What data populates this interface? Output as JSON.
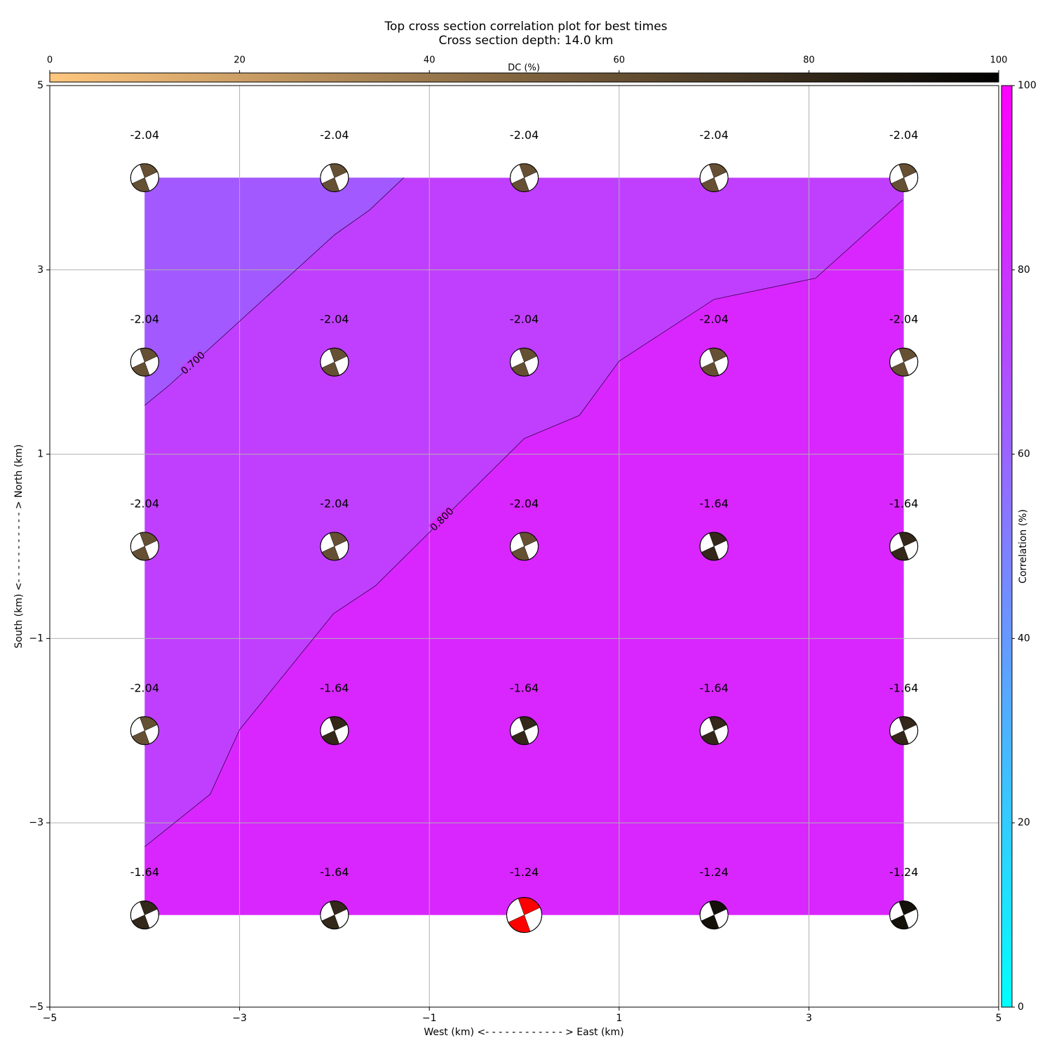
{
  "chart_data": {
    "type": "contour",
    "title": "Top cross section correlation plot for best times",
    "subtitle": "Cross section depth: 14.0 km",
    "xlabel": "West (km) <- - - - - - - - - - - - > East (km)",
    "ylabel": "South (km) <- - - - - - - - - - - > North (km)",
    "xlim": [
      -5,
      5
    ],
    "ylim": [
      -5,
      5
    ],
    "xticks": [
      {
        "value": -5,
        "label": "−5"
      },
      {
        "value": -3,
        "label": "−3"
      },
      {
        "value": -1,
        "label": "−1"
      },
      1,
      3,
      5
    ],
    "yticks": [
      {
        "value": -5,
        "label": "−5"
      },
      {
        "value": -3,
        "label": "−3"
      },
      {
        "value": -1,
        "label": "−1"
      },
      1,
      3,
      5
    ],
    "grid": true,
    "region_colors": [
      "#a259ff",
      "#c03fff",
      "#d926ff"
    ],
    "contours": [
      {
        "level": {
          "value": 0.7,
          "label": "0.700"
        },
        "x": [
          -4.0,
          -3.75,
          -2.0,
          -1.63,
          -1.27
        ],
        "y": [
          1.53,
          1.74,
          3.38,
          3.65,
          4.0
        ]
      },
      {
        "level": {
          "value": 0.8,
          "label": "0.800"
        },
        "x": [
          -4.0,
          -3.31,
          -3.0,
          -2.01,
          -1.57,
          0.0,
          0.58,
          1.0,
          2.0,
          3.07,
          3.99
        ],
        "y": [
          -3.26,
          -2.69,
          -1.99,
          -0.73,
          -0.43,
          1.17,
          1.42,
          2.01,
          2.68,
          2.91,
          3.76
        ]
      }
    ],
    "points": [
      {
        "x": -4,
        "y": 4,
        "value": -2.04,
        "dc": 60
      },
      {
        "x": -2,
        "y": 4,
        "value": -2.04,
        "dc": 60
      },
      {
        "x": 0,
        "y": 4,
        "value": -2.04,
        "dc": 60
      },
      {
        "x": 2,
        "y": 4,
        "value": -2.04,
        "dc": 60
      },
      {
        "x": 4,
        "y": 4,
        "value": -2.04,
        "dc": 60
      },
      {
        "x": -4,
        "y": 2,
        "value": -2.04,
        "dc": 60
      },
      {
        "x": -2,
        "y": 2,
        "value": -2.04,
        "dc": 60
      },
      {
        "x": 0,
        "y": 2,
        "value": -2.04,
        "dc": 60
      },
      {
        "x": 2,
        "y": 2,
        "value": -2.04,
        "dc": 60
      },
      {
        "x": 4,
        "y": 2,
        "value": -2.04,
        "dc": 60
      },
      {
        "x": -4,
        "y": 0,
        "value": -2.04,
        "dc": 60
      },
      {
        "x": -2,
        "y": 0,
        "value": -2.04,
        "dc": 60
      },
      {
        "x": 0,
        "y": 0,
        "value": -2.04,
        "dc": 60
      },
      {
        "x": 2,
        "y": 0,
        "value": -1.64,
        "dc": 80
      },
      {
        "x": 4,
        "y": 0,
        "value": -1.64,
        "dc": 80
      },
      {
        "x": -4,
        "y": -2,
        "value": -2.04,
        "dc": 60
      },
      {
        "x": -2,
        "y": -2,
        "value": -1.64,
        "dc": 80
      },
      {
        "x": 0,
        "y": -2,
        "value": -1.64,
        "dc": 80
      },
      {
        "x": 2,
        "y": -2,
        "value": -1.64,
        "dc": 80
      },
      {
        "x": 4,
        "y": -2,
        "value": -1.64,
        "dc": 80
      },
      {
        "x": -4,
        "y": -4,
        "value": -1.64,
        "dc": 80
      },
      {
        "x": -2,
        "y": -4,
        "value": -1.64,
        "dc": 80
      },
      {
        "x": 0,
        "y": -4,
        "value": -1.24,
        "dc": 92
      },
      {
        "x": 2,
        "y": -4,
        "value": -1.24,
        "dc": 92
      },
      {
        "x": 4,
        "y": -4,
        "value": -1.24,
        "dc": 92
      }
    ],
    "highlight": {
      "index": 22,
      "color": "#ff0000"
    },
    "dc_colorbar": {
      "label": "DC (%)",
      "lim": [
        0,
        100
      ],
      "ticks": [
        0,
        20,
        40,
        60,
        80,
        100
      ],
      "colors": [
        "#ffc77f",
        "#000000"
      ]
    },
    "corr_colorbar": {
      "label": "Correlation (%)",
      "lim": [
        0,
        100
      ],
      "ticks": [
        0,
        20,
        40,
        60,
        80,
        100
      ],
      "colors": [
        "#00ffff",
        "#ff00ff"
      ]
    }
  }
}
